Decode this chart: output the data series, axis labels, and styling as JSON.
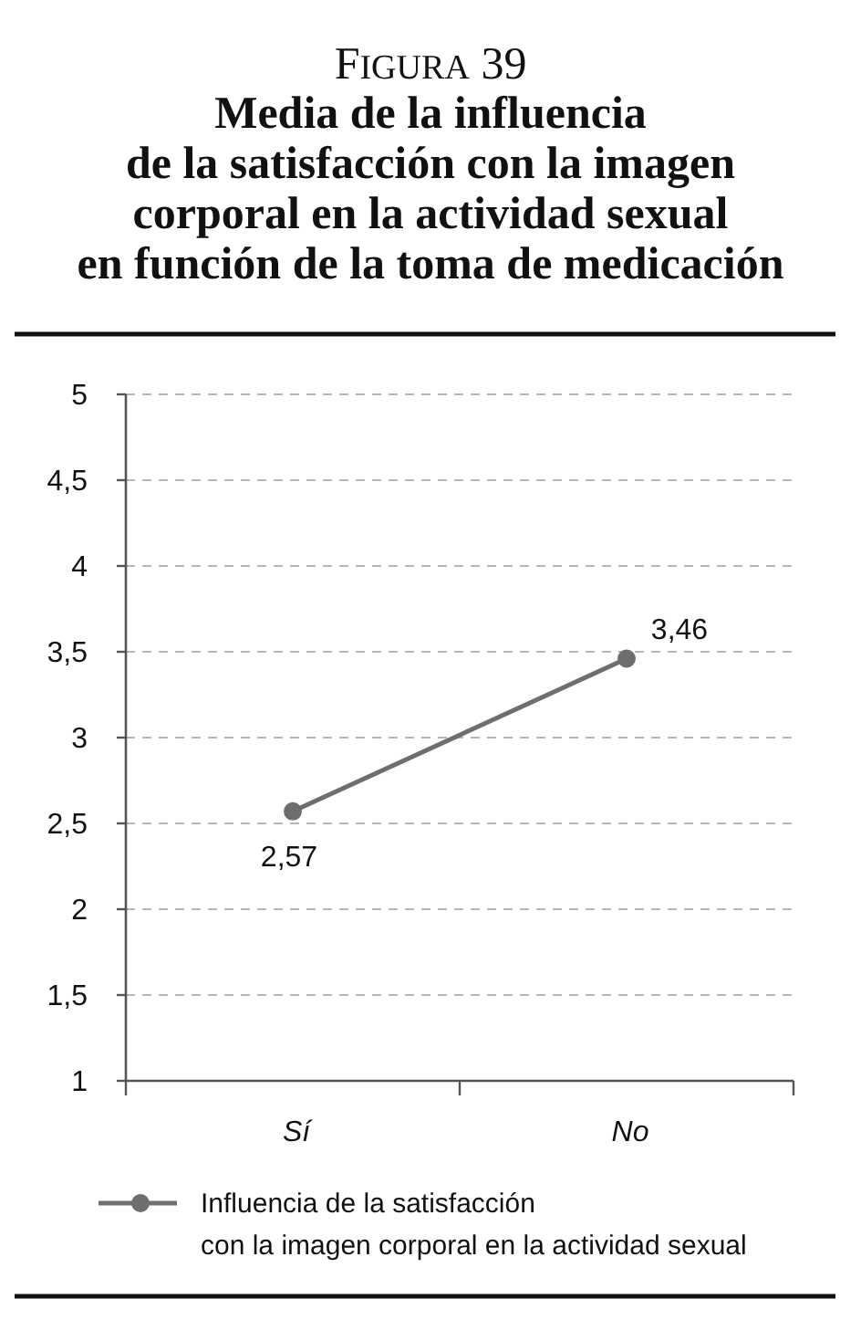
{
  "chart_data": {
    "type": "line",
    "title": "FIGURA 39",
    "subtitle": "Media de la influencia\nde la satisfacción con la imagen\ncorporal en la actividad sexual\nen función de la toma de medicación",
    "categories": [
      "Sí",
      "No"
    ],
    "series": [
      {
        "name": "Influencia de la satisfacción\ncon la imagen corporal en la actividad sexual",
        "color": "#6e6e6e",
        "values": [
          2.57,
          3.46
        ],
        "value_labels": [
          "2,57",
          "3,46"
        ]
      }
    ],
    "ylim": [
      1,
      5
    ],
    "yticks": [
      1,
      {
        "value": 1.5,
        "label": "1,5"
      },
      2,
      {
        "value": 2.5,
        "label": "2,5"
      },
      3,
      {
        "value": 3.5,
        "label": "3,5"
      },
      4,
      {
        "value": 4.5,
        "label": "4,5"
      },
      5
    ],
    "grid": "y",
    "legend": "bottom",
    "marker": "circle",
    "line_style": "solid"
  }
}
